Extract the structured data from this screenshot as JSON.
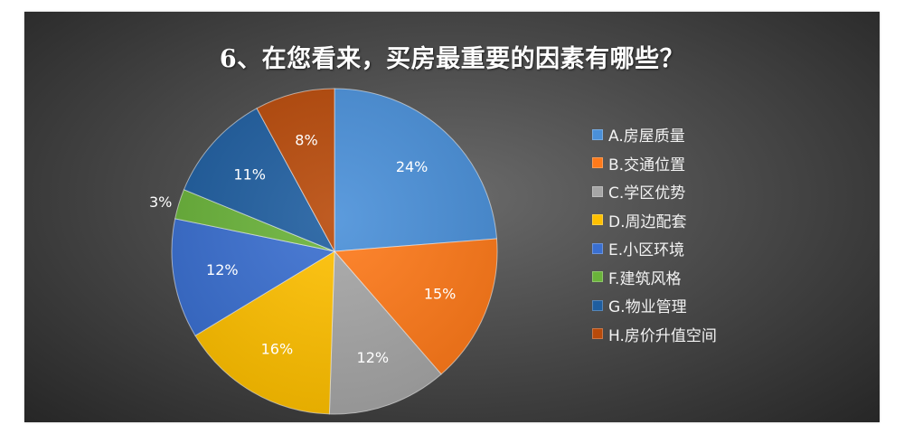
{
  "chart_data": {
    "type": "pie",
    "title": "6、在您看来，买房最重要的因素有哪些？",
    "legend_position": "right",
    "categories": [
      "A.房屋质量",
      "B.交通位置",
      "C.学区优势",
      "D.周边配套",
      "E.小区环境",
      "F.建筑风格",
      "G.物业管理",
      "H.房价升值空间"
    ],
    "values": [
      24,
      15,
      12,
      16,
      12,
      3,
      11,
      8
    ],
    "labels": [
      "24%",
      "15%",
      "12%",
      "16%",
      "12%",
      "3%",
      "11%",
      "8%"
    ],
    "colors": [
      "#4a90d9",
      "#ff7a1a",
      "#a6a6a6",
      "#ffc000",
      "#3a6fd0",
      "#6ab33a",
      "#1f5ea0",
      "#b84a0a"
    ]
  }
}
